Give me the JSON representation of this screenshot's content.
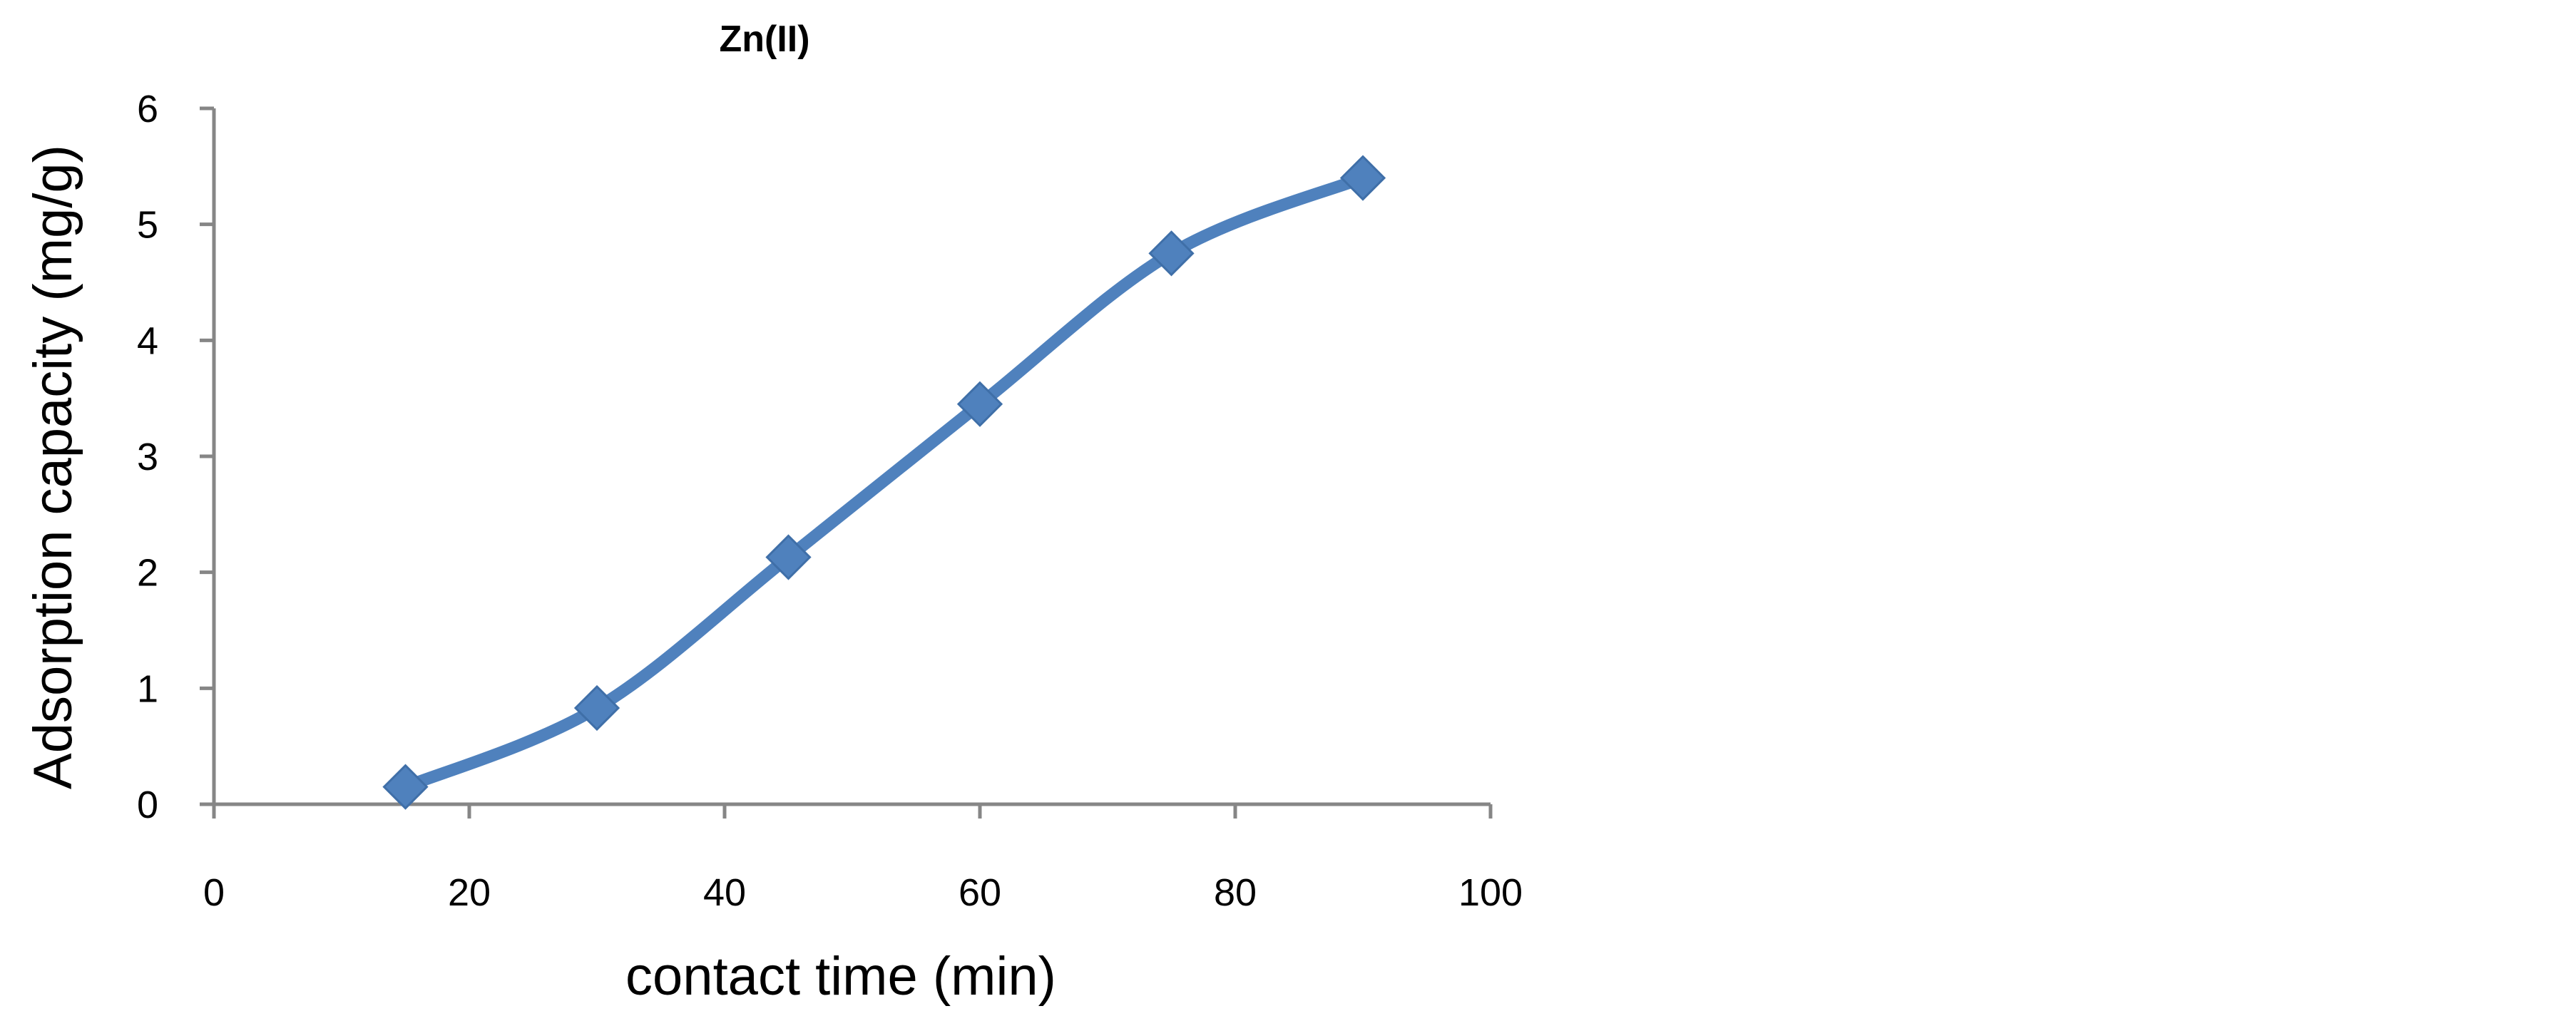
{
  "chart_data": {
    "type": "line",
    "title": "Zn(II)",
    "xlabel": "contact time (min)",
    "ylabel": "Adsorption capacity (mg/g)",
    "xlim": [
      0,
      100
    ],
    "ylim": [
      0,
      6
    ],
    "x_ticks": [
      0,
      20,
      40,
      60,
      80,
      100
    ],
    "y_ticks": [
      0,
      1,
      2,
      3,
      4,
      5,
      6
    ],
    "x_tick_labels": [
      "0",
      "20",
      "40",
      "60",
      "80",
      "100"
    ],
    "y_tick_labels": [
      "0",
      "1",
      "2",
      "3",
      "4",
      "5",
      "6"
    ],
    "grid": false,
    "legend": "none",
    "marker": "diamond",
    "line_style": "smooth",
    "color": "#4F81BD",
    "axis_color": "#868686",
    "series": [
      {
        "x": [
          15,
          30,
          45,
          60,
          75,
          90
        ],
        "values": [
          0.15,
          0.83,
          2.13,
          3.45,
          4.75,
          5.4
        ]
      }
    ]
  }
}
